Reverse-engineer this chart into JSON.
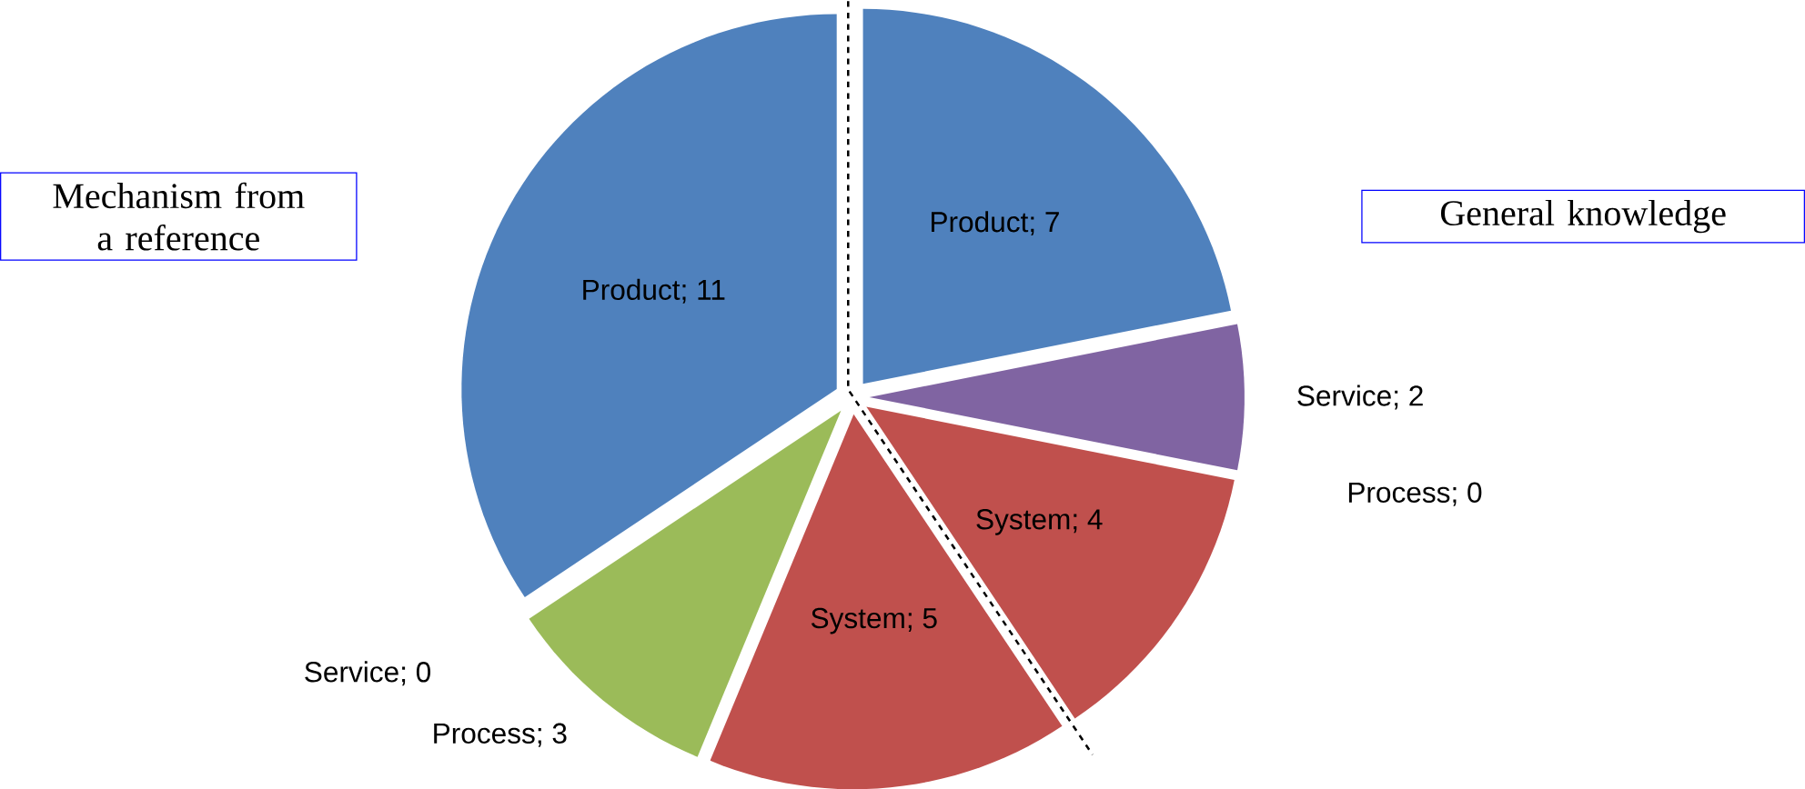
{
  "chart_data": {
    "type": "pie",
    "categories": [
      "Product; 7",
      "Service; 2",
      "Process; 0",
      "System; 4",
      "System; 5",
      "Process; 3",
      "Service; 0",
      "Product; 11"
    ],
    "values": [
      7,
      2,
      0,
      4,
      5,
      3,
      0,
      11
    ],
    "colors": [
      "#4f81bd",
      "#8064a2",
      "#9bbb59",
      "#c0504d",
      "#c0504d",
      "#9bbb59",
      "#8064a2",
      "#4f81bd"
    ],
    "annotations": [
      "Mechanism from a reference",
      "General knowledge"
    ]
  }
}
